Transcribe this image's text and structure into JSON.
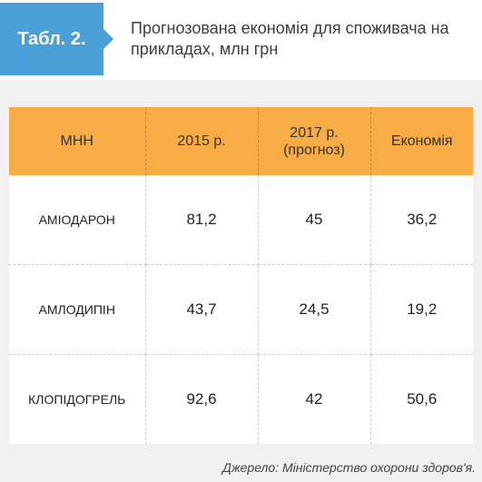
{
  "header": {
    "tag_label": "Табл. 2.",
    "title": "Прогнозована економія для споживача на прикладах, млн грн"
  },
  "table": {
    "columns": [
      "МНН",
      "2015 р.",
      "2017 р. (прогноз)",
      "Економія"
    ],
    "rows": [
      {
        "name": "АМІОДАРОН",
        "v2015": "81,2",
        "v2017": "45",
        "saving": "36,2"
      },
      {
        "name": "АМЛОДИПІН",
        "v2015": "43,7",
        "v2017": "24,5",
        "saving": "19,2"
      },
      {
        "name": "КЛОПІДОГРЕЛЬ",
        "v2015": "92,6",
        "v2017": "42",
        "saving": "50,6"
      }
    ]
  },
  "footer": {
    "source": "Джерело: Міністерство охорони здоров'я."
  },
  "colors": {
    "tag": "#4a9fd8",
    "header_row": "#f8ac45",
    "panel": "#f0f0f0"
  }
}
